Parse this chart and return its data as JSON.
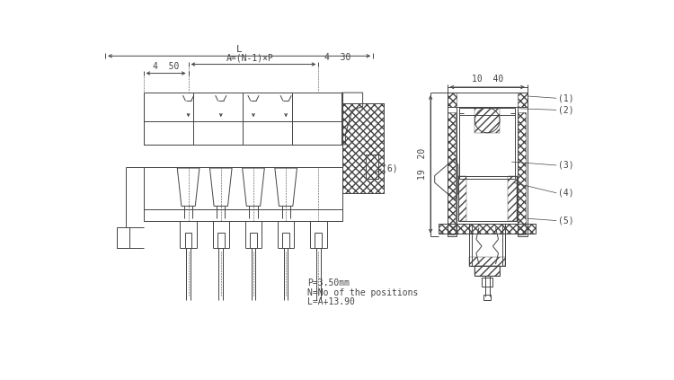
{
  "bg_color": "#ffffff",
  "lc": "#444444",
  "lw": 0.7,
  "lw_thick": 1.0,
  "fs": 7.0,
  "annotations": {
    "L": "L",
    "A": "A=(N-1)×P",
    "d430": "4  30",
    "d450": "4  50",
    "d1040": "10  40",
    "d1920": "19  20",
    "l1": "(1)",
    "l2": "(2)",
    "l3": "(3)",
    "l4": "(4)",
    "l5": "(5)",
    "l6": "(6)",
    "note1": "P=3.50mm",
    "note2": "N=No of the positions",
    "note3": "L=A+13.90"
  }
}
